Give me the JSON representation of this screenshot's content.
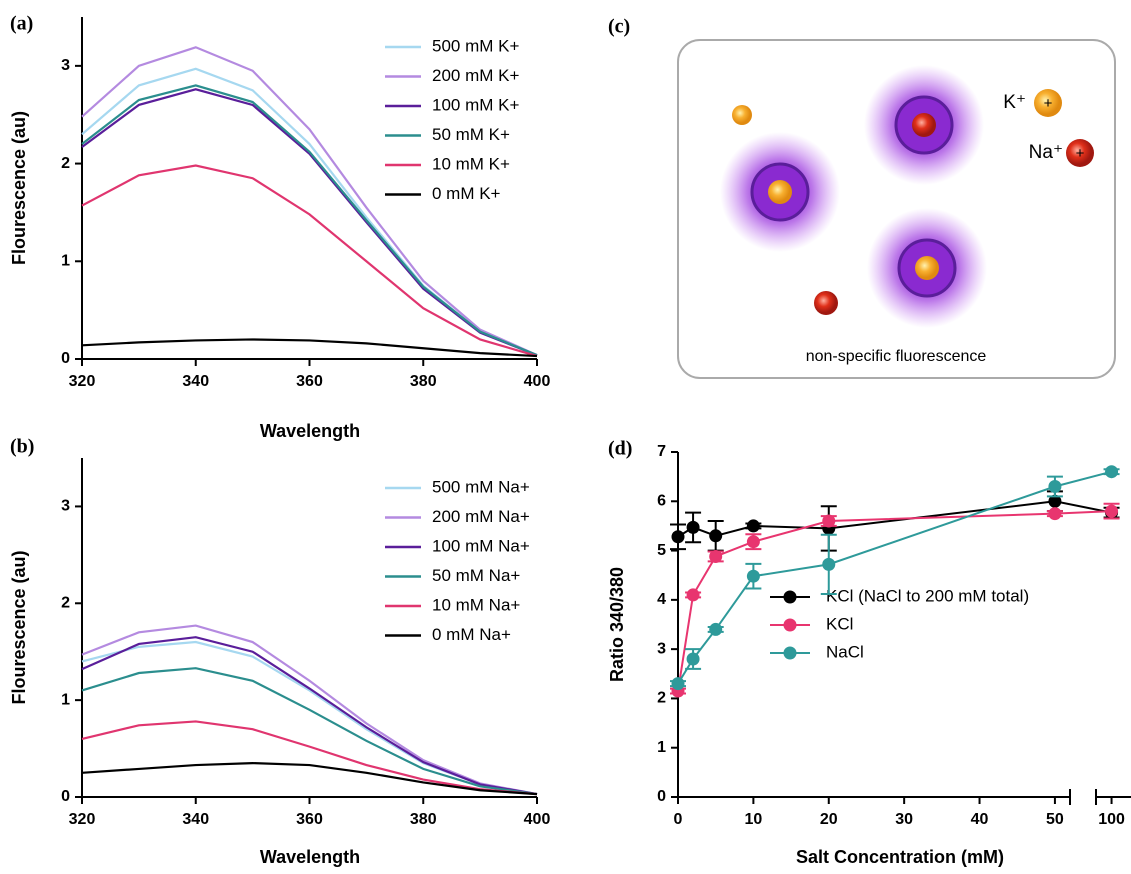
{
  "chart_data": [
    {
      "type": "line",
      "panel_label": "(a)",
      "x_label": "Wavelength",
      "y_label": "Flourescence (au)",
      "x": [
        320,
        330,
        340,
        350,
        360,
        370,
        380,
        390,
        400
      ],
      "xlim": [
        320,
        400
      ],
      "xticks": [
        320,
        340,
        360,
        380,
        400
      ],
      "ylim": [
        0,
        3.5
      ],
      "yticks": [
        0,
        1,
        2,
        3
      ],
      "series": [
        {
          "name": "500 mM K+",
          "color": "#a6d8f0",
          "values": [
            2.3,
            2.8,
            2.97,
            2.75,
            2.2,
            1.45,
            0.75,
            0.28,
            0.04
          ]
        },
        {
          "name": "200 mM K+",
          "color": "#b48ae0",
          "values": [
            2.48,
            3.0,
            3.19,
            2.95,
            2.35,
            1.55,
            0.8,
            0.3,
            0.04
          ]
        },
        {
          "name": "100 mM K+",
          "color": "#5a1e9a",
          "values": [
            2.17,
            2.6,
            2.76,
            2.6,
            2.1,
            1.4,
            0.72,
            0.27,
            0.04
          ]
        },
        {
          "name": "50 mM K+",
          "color": "#2b8e8e",
          "values": [
            2.2,
            2.65,
            2.8,
            2.63,
            2.12,
            1.42,
            0.74,
            0.28,
            0.04
          ]
        },
        {
          "name": "10 mM K+",
          "color": "#e0356f",
          "values": [
            1.57,
            1.88,
            1.98,
            1.85,
            1.48,
            1.0,
            0.52,
            0.2,
            0.03
          ]
        },
        {
          "name": "0 mM K+",
          "color": "#000000",
          "values": [
            0.14,
            0.17,
            0.19,
            0.2,
            0.19,
            0.16,
            0.11,
            0.06,
            0.03
          ]
        }
      ]
    },
    {
      "type": "line",
      "panel_label": "(b)",
      "x_label": "Wavelength",
      "y_label": "Flourescence (au)",
      "x": [
        320,
        330,
        340,
        350,
        360,
        370,
        380,
        390,
        400
      ],
      "xlim": [
        320,
        400
      ],
      "xticks": [
        320,
        340,
        360,
        380,
        400
      ],
      "ylim": [
        0,
        3.5
      ],
      "yticks": [
        0,
        1,
        2,
        3
      ],
      "series": [
        {
          "name": "500 mM Na+",
          "color": "#a6d8f0",
          "values": [
            1.4,
            1.55,
            1.6,
            1.45,
            1.1,
            0.7,
            0.35,
            0.13,
            0.03
          ]
        },
        {
          "name": "200 mM Na+",
          "color": "#b48ae0",
          "values": [
            1.47,
            1.7,
            1.77,
            1.6,
            1.2,
            0.76,
            0.38,
            0.14,
            0.03
          ]
        },
        {
          "name": "100 mM Na+",
          "color": "#5a1e9a",
          "values": [
            1.32,
            1.58,
            1.65,
            1.5,
            1.12,
            0.72,
            0.36,
            0.13,
            0.03
          ]
        },
        {
          "name": "50 mM Na+",
          "color": "#2b8e8e",
          "values": [
            1.1,
            1.28,
            1.33,
            1.2,
            0.9,
            0.58,
            0.29,
            0.11,
            0.03
          ]
        },
        {
          "name": "10 mM Na+",
          "color": "#e0356f",
          "values": [
            0.6,
            0.74,
            0.78,
            0.7,
            0.52,
            0.33,
            0.18,
            0.08,
            0.03
          ]
        },
        {
          "name": "0 mM Na+",
          "color": "#000000",
          "values": [
            0.25,
            0.29,
            0.33,
            0.35,
            0.33,
            0.25,
            0.15,
            0.07,
            0.03
          ]
        }
      ]
    },
    {
      "type": "errorscatter",
      "panel_label": "(d)",
      "x_label": "Salt Concentration (mM)",
      "y_label": "Ratio 340/380",
      "x": [
        0,
        2,
        5,
        10,
        20,
        50,
        100
      ],
      "xlim": [
        0,
        105
      ],
      "xbreak": [
        52,
        96
      ],
      "xticks": [
        0,
        10,
        20,
        30,
        40,
        50,
        100
      ],
      "ylim": [
        0,
        7
      ],
      "yticks": [
        0,
        1,
        2,
        3,
        4,
        5,
        6,
        7
      ],
      "series": [
        {
          "name": "KCl (NaCl to 200 mM total)",
          "color": "#000000",
          "values": [
            5.28,
            5.47,
            5.3,
            5.5,
            5.45,
            6.0,
            5.77
          ],
          "errors": [
            0.25,
            0.3,
            0.3,
            0.05,
            0.45,
            0.2,
            0.1
          ]
        },
        {
          "name": "KCl",
          "color": "#e8356f",
          "values": [
            2.15,
            4.1,
            4.88,
            5.18,
            5.6,
            5.75,
            5.8
          ],
          "errors": [
            0.05,
            0.05,
            0.1,
            0.15,
            0.1,
            0.05,
            0.15
          ]
        },
        {
          "name": "NaCl",
          "color": "#2e9a9a",
          "values": [
            2.3,
            2.8,
            3.4,
            4.48,
            4.72,
            6.3,
            6.6
          ],
          "errors": [
            0.05,
            0.2,
            0.05,
            0.25,
            0.6,
            0.2,
            0.05
          ]
        }
      ]
    }
  ],
  "diagram": {
    "panel_label": "(c)",
    "k_label": "K⁺",
    "na_label": "Na⁺",
    "caption": "non-specific fluorescence"
  }
}
